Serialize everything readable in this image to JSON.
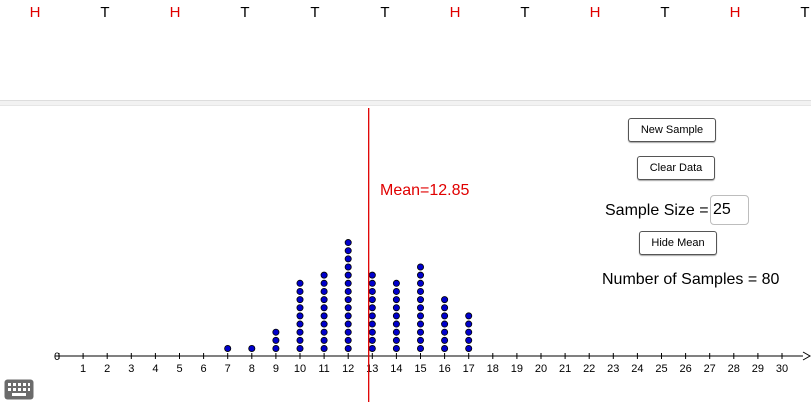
{
  "coin_flips": [
    "H",
    "T",
    "H",
    "T",
    "T",
    "T",
    "H",
    "T",
    "H",
    "T",
    "H",
    "T"
  ],
  "colors": {
    "heads": "#e00000",
    "tails": "#000000",
    "dots": "#0000cc",
    "mean_line": "#e00000"
  },
  "buttons": {
    "new_sample": "New Sample",
    "clear_data": "Clear Data",
    "hide_mean": "Hide Mean"
  },
  "sample_size": {
    "label": "Sample Size =",
    "value": "25"
  },
  "number_of_samples": "Number of Samples = 80",
  "mean_label": "Mean=12.85",
  "keyboard_icon": "keyboard-icon",
  "chart_data": {
    "type": "dot-plot",
    "x_ticks": [
      0,
      1,
      2,
      3,
      4,
      5,
      6,
      7,
      8,
      9,
      10,
      11,
      12,
      13,
      14,
      15,
      16,
      17,
      18,
      19,
      20,
      21,
      22,
      23,
      24,
      25,
      26,
      27,
      28,
      29,
      30
    ],
    "xlim": [
      0,
      30
    ],
    "mean": 12.85,
    "counts": [
      {
        "x": 7,
        "count": 1
      },
      {
        "x": 8,
        "count": 1
      },
      {
        "x": 9,
        "count": 3
      },
      {
        "x": 10,
        "count": 9
      },
      {
        "x": 11,
        "count": 10
      },
      {
        "x": 12,
        "count": 14
      },
      {
        "x": 13,
        "count": 10
      },
      {
        "x": 14,
        "count": 9
      },
      {
        "x": 15,
        "count": 11
      },
      {
        "x": 16,
        "count": 7
      },
      {
        "x": 17,
        "count": 5
      }
    ]
  }
}
